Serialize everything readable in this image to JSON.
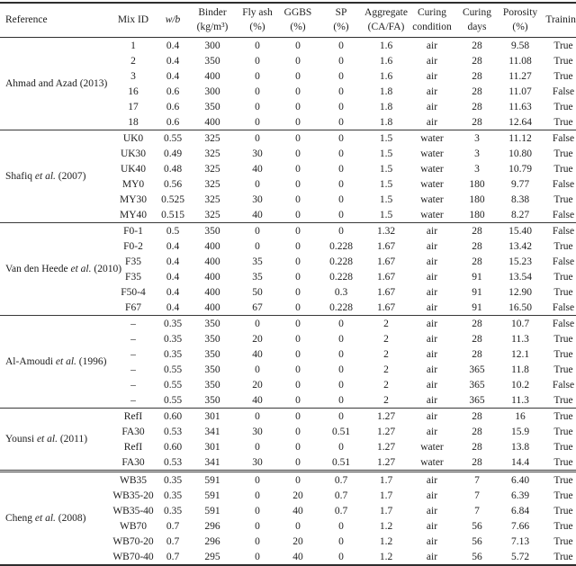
{
  "table": {
    "columns": [
      {
        "key": "reference",
        "line1": "Reference",
        "line2": ""
      },
      {
        "key": "mix-id",
        "line1": "Mix ID",
        "line2": ""
      },
      {
        "key": "w-b",
        "line1": "w/b",
        "line2": ""
      },
      {
        "key": "binder",
        "line1": "Binder",
        "line2": "(kg/m³)"
      },
      {
        "key": "fly-ash",
        "line1": "Fly ash",
        "line2": "(%)"
      },
      {
        "key": "ggbs",
        "line1": "GGBS",
        "line2": "(%)"
      },
      {
        "key": "sp",
        "line1": "SP",
        "line2": "(%)"
      },
      {
        "key": "aggregate",
        "line1": "Aggregate",
        "line2": "(CA/FA)"
      },
      {
        "key": "curing-condition",
        "line1": "Curing",
        "line2": "condition"
      },
      {
        "key": "curing-days",
        "line1": "Curing",
        "line2": "days"
      },
      {
        "key": "porosity",
        "line1": "Porosity",
        "line2": "(%)"
      },
      {
        "key": "training",
        "line1": "Training",
        "line2": ""
      }
    ],
    "cell_keys": [
      "mix-id",
      "w-b",
      "binder",
      "fly-ash",
      "ggbs",
      "sp",
      "aggregate",
      "curing-condition",
      "curing-days",
      "porosity",
      "training"
    ],
    "sections": [
      {
        "reference": {
          "before": "Ahmad and Azad (2013)",
          "italic": "",
          "after": ""
        },
        "divider": "single",
        "rows": [
          [
            "1",
            "0.4",
            "300",
            "0",
            "0",
            "0",
            "1.6",
            "air",
            "28",
            "9.58",
            "True"
          ],
          [
            "2",
            "0.4",
            "350",
            "0",
            "0",
            "0",
            "1.6",
            "air",
            "28",
            "11.08",
            "True"
          ],
          [
            "3",
            "0.4",
            "400",
            "0",
            "0",
            "0",
            "1.6",
            "air",
            "28",
            "11.27",
            "True"
          ],
          [
            "16",
            "0.6",
            "300",
            "0",
            "0",
            "0",
            "1.8",
            "air",
            "28",
            "11.07",
            "False"
          ],
          [
            "17",
            "0.6",
            "350",
            "0",
            "0",
            "0",
            "1.8",
            "air",
            "28",
            "11.63",
            "True"
          ],
          [
            "18",
            "0.6",
            "400",
            "0",
            "0",
            "0",
            "1.8",
            "air",
            "28",
            "12.64",
            "True"
          ]
        ]
      },
      {
        "reference": {
          "before": "Shafiq ",
          "italic": "et al.",
          "after": " (2007)"
        },
        "divider": "single",
        "rows": [
          [
            "UK0",
            "0.55",
            "325",
            "0",
            "0",
            "0",
            "1.5",
            "water",
            "3",
            "11.12",
            "False"
          ],
          [
            "UK30",
            "0.49",
            "325",
            "30",
            "0",
            "0",
            "1.5",
            "water",
            "3",
            "10.80",
            "True"
          ],
          [
            "UK40",
            "0.48",
            "325",
            "40",
            "0",
            "0",
            "1.5",
            "water",
            "3",
            "10.79",
            "True"
          ],
          [
            "MY0",
            "0.56",
            "325",
            "0",
            "0",
            "0",
            "1.5",
            "water",
            "180",
            "9.77",
            "False"
          ],
          [
            "MY30",
            "0.525",
            "325",
            "30",
            "0",
            "0",
            "1.5",
            "water",
            "180",
            "8.38",
            "True"
          ],
          [
            "MY40",
            "0.515",
            "325",
            "40",
            "0",
            "0",
            "1.5",
            "water",
            "180",
            "8.27",
            "False"
          ]
        ]
      },
      {
        "reference": {
          "before": "Van den Heede ",
          "italic": "et al.",
          "after": " (2010)"
        },
        "divider": "single",
        "rows": [
          [
            "F0-1",
            "0.5",
            "350",
            "0",
            "0",
            "0",
            "1.32",
            "air",
            "28",
            "15.40",
            "False"
          ],
          [
            "F0-2",
            "0.4",
            "400",
            "0",
            "0",
            "0.228",
            "1.67",
            "air",
            "28",
            "13.42",
            "True"
          ],
          [
            "F35",
            "0.4",
            "400",
            "35",
            "0",
            "0.228",
            "1.67",
            "air",
            "28",
            "15.23",
            "False"
          ],
          [
            "F35",
            "0.4",
            "400",
            "35",
            "0",
            "0.228",
            "1.67",
            "air",
            "91",
            "13.54",
            "True"
          ],
          [
            "F50-4",
            "0.4",
            "400",
            "50",
            "0",
            "0.3",
            "1.67",
            "air",
            "91",
            "12.90",
            "True"
          ],
          [
            "F67",
            "0.4",
            "400",
            "67",
            "0",
            "0.228",
            "1.67",
            "air",
            "91",
            "16.50",
            "False"
          ]
        ]
      },
      {
        "reference": {
          "before": "Al-Amoudi ",
          "italic": "et al.",
          "after": " (1996)"
        },
        "divider": "single",
        "rows": [
          [
            "–",
            "0.35",
            "350",
            "0",
            "0",
            "0",
            "2",
            "air",
            "28",
            "10.7",
            "False"
          ],
          [
            "–",
            "0.35",
            "350",
            "20",
            "0",
            "0",
            "2",
            "air",
            "28",
            "11.3",
            "True"
          ],
          [
            "–",
            "0.35",
            "350",
            "40",
            "0",
            "0",
            "2",
            "air",
            "28",
            "12.1",
            "True"
          ],
          [
            "–",
            "0.55",
            "350",
            "0",
            "0",
            "0",
            "2",
            "air",
            "365",
            "11.8",
            "True"
          ],
          [
            "–",
            "0.55",
            "350",
            "20",
            "0",
            "0",
            "2",
            "air",
            "365",
            "10.2",
            "False"
          ],
          [
            "–",
            "0.55",
            "350",
            "40",
            "0",
            "0",
            "2",
            "air",
            "365",
            "11.3",
            "True"
          ]
        ]
      },
      {
        "reference": {
          "before": "Younsi ",
          "italic": "et al.",
          "after": " (2011)"
        },
        "divider": "single",
        "rows": [
          [
            "RefI",
            "0.60",
            "301",
            "0",
            "0",
            "0",
            "1.27",
            "air",
            "28",
            "16",
            "True"
          ],
          [
            "FA30",
            "0.53",
            "341",
            "30",
            "0",
            "0.51",
            "1.27",
            "air",
            "28",
            "15.9",
            "True"
          ],
          [
            "RefI",
            "0.60",
            "301",
            "0",
            "0",
            "0",
            "1.27",
            "water",
            "28",
            "13.8",
            "True"
          ],
          [
            "FA30",
            "0.53",
            "341",
            "30",
            "0",
            "0.51",
            "1.27",
            "water",
            "28",
            "14.4",
            "True"
          ]
        ]
      },
      {
        "reference": {
          "before": "Cheng ",
          "italic": "et al.",
          "after": " (2008)"
        },
        "divider": "double",
        "rows": [
          [
            "WB35",
            "0.35",
            "591",
            "0",
            "0",
            "0.7",
            "1.7",
            "air",
            "7",
            "6.40",
            "True"
          ],
          [
            "WB35-20",
            "0.35",
            "591",
            "0",
            "20",
            "0.7",
            "1.7",
            "air",
            "7",
            "6.39",
            "True"
          ],
          [
            "WB35-40",
            "0.35",
            "591",
            "0",
            "40",
            "0.7",
            "1.7",
            "air",
            "7",
            "6.84",
            "True"
          ],
          [
            "WB70",
            "0.7",
            "296",
            "0",
            "0",
            "0",
            "1.2",
            "air",
            "56",
            "7.66",
            "True"
          ],
          [
            "WB70-20",
            "0.7",
            "296",
            "0",
            "20",
            "0",
            "1.2",
            "air",
            "56",
            "7.13",
            "True"
          ],
          [
            "WB70-40",
            "0.7",
            "295",
            "0",
            "40",
            "0",
            "1.2",
            "air",
            "56",
            "5.72",
            "True"
          ]
        ]
      }
    ]
  }
}
